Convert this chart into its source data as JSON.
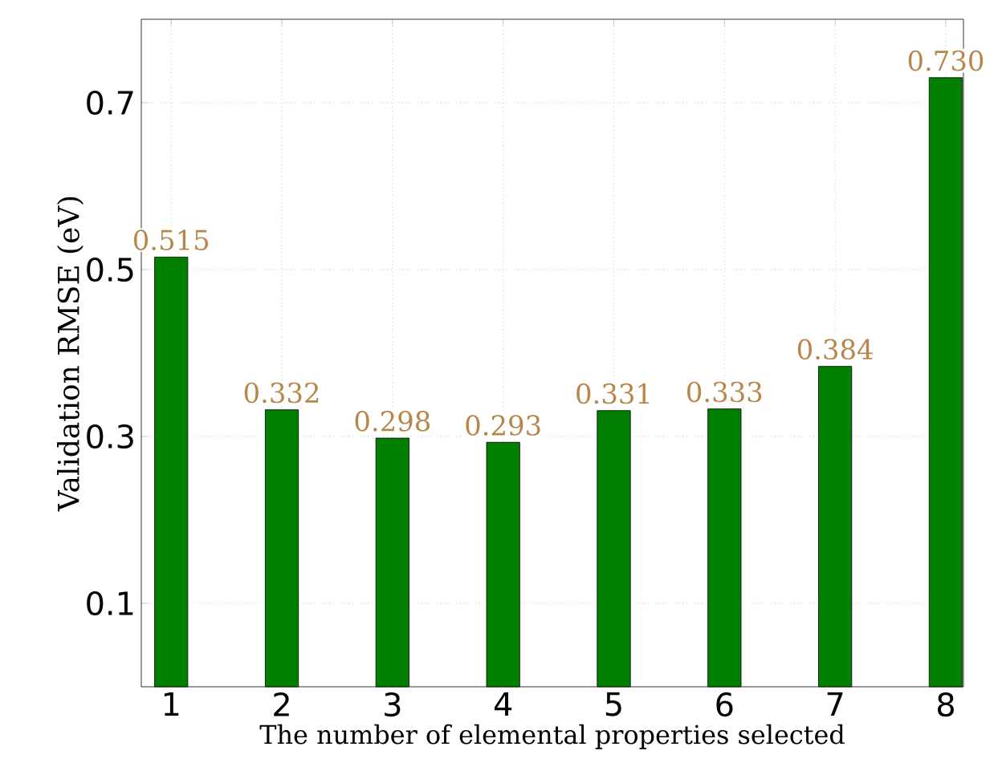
{
  "chart_data": {
    "type": "bar",
    "xlabel": "The number of elemental properties selected",
    "ylabel": "Validation RMSE (eV)",
    "x": [
      1,
      2,
      3,
      4,
      5,
      6,
      7,
      8
    ],
    "values": [
      0.515,
      0.332,
      0.298,
      0.293,
      0.331,
      0.333,
      0.384,
      0.73
    ],
    "value_labels": [
      "0.515",
      "0.332",
      "0.298",
      "0.293",
      "0.331",
      "0.333",
      "0.384",
      "0.730"
    ],
    "color": "#007f00",
    "xlim": [
      0.73,
      8.16
    ],
    "xticks": [
      1,
      2,
      3,
      4,
      5,
      6,
      7,
      8
    ],
    "ylim": [
      0,
      0.8
    ],
    "yticks": [
      0.1,
      0.3,
      0.5,
      0.7
    ],
    "grid": true
  }
}
